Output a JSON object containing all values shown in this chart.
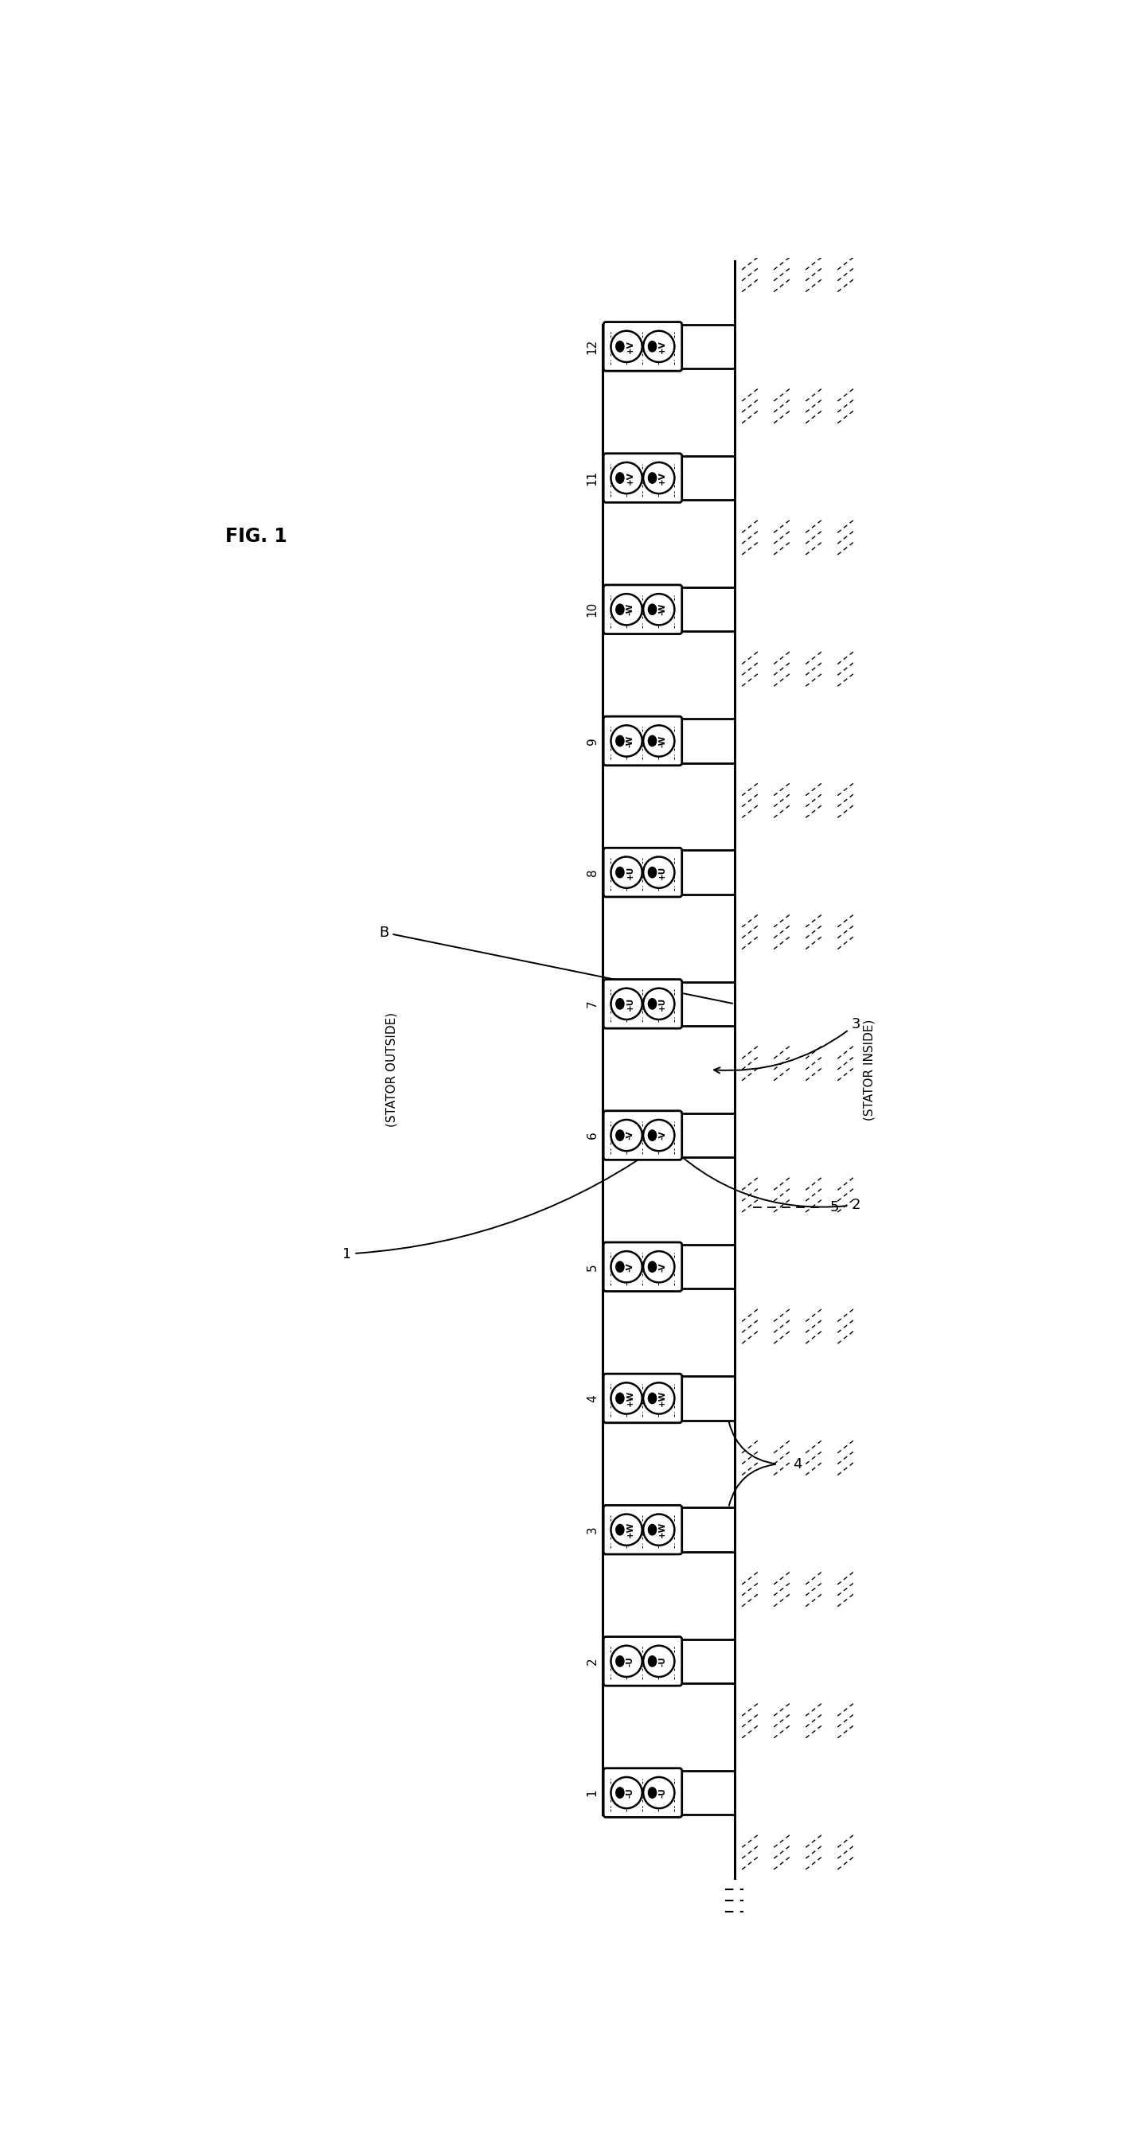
{
  "title": "FIG. 1",
  "num_slots": 12,
  "slot_labels": [
    1,
    2,
    3,
    4,
    5,
    6,
    7,
    8,
    9,
    10,
    11,
    12
  ],
  "coil_phases": [
    [
      "-U",
      "-U"
    ],
    [
      "-U",
      "-U"
    ],
    [
      "+W",
      "+W"
    ],
    [
      "+W",
      "+W"
    ],
    [
      "-V",
      "-V"
    ],
    [
      "-V",
      "-V"
    ],
    [
      "+U",
      "+U"
    ],
    [
      "+U",
      "+U"
    ],
    [
      "-W",
      "-W"
    ],
    [
      "-W",
      "-W"
    ],
    [
      "+V",
      "+V"
    ],
    [
      "+V",
      "+V"
    ]
  ],
  "background_color": "#ffffff",
  "line_color": "#000000",
  "stator_outside_label": "(STATOR OUTSIDE)",
  "stator_inside_label": "(STATOR INSIDE)",
  "label_1": "1",
  "label_2": "2",
  "label_3": "3",
  "label_4": "4",
  "label_5": "5",
  "label_B": "B"
}
